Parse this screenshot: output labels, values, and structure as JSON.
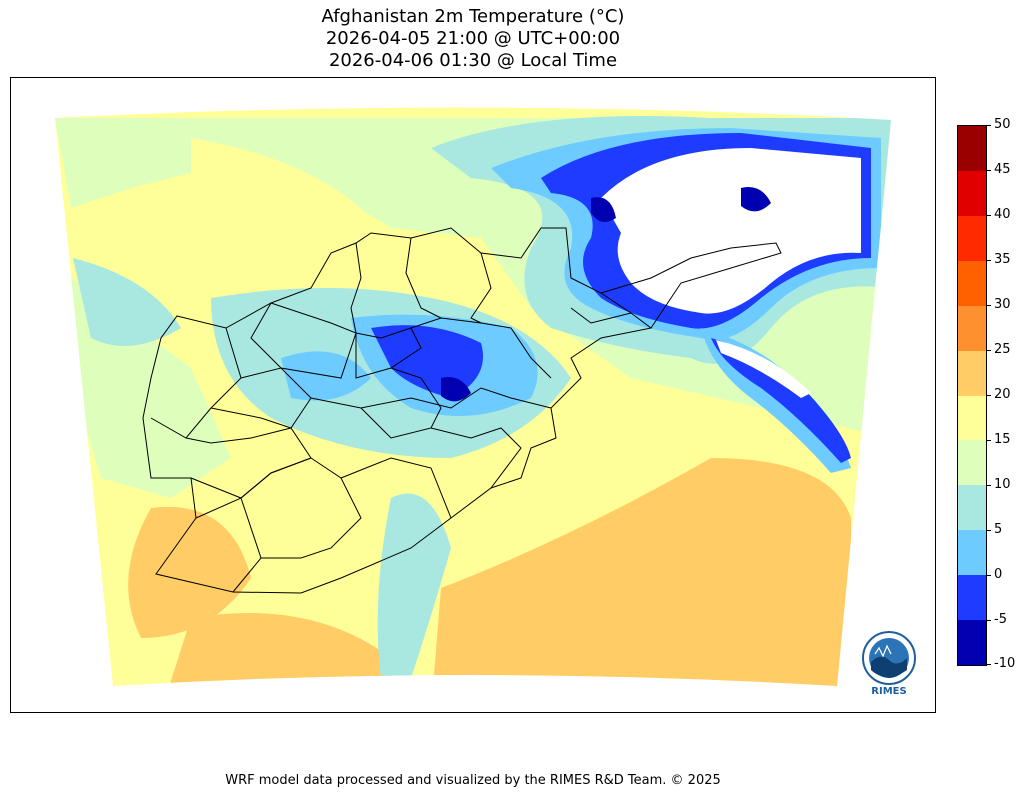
{
  "title": {
    "line1": "Afghanistan 2m Temperature (°C)",
    "line2": "2026-04-05 21:00 @ UTC+00:00",
    "line3": "2026-04-06 01:30 @ Local Time"
  },
  "colorbar": {
    "ticks": [
      "50",
      "45",
      "40",
      "35",
      "30",
      "25",
      "20",
      "15",
      "10",
      "5",
      "0",
      "-5",
      "-10"
    ],
    "colors_top_to_bottom": [
      "#9b0000",
      "#e00000",
      "#ff2a00",
      "#ff6100",
      "#ff9030",
      "#ffcc66",
      "#ffff99",
      "#ddffbb",
      "#a8e8e0",
      "#6ecbff",
      "#1e3cff",
      "#0000b0"
    ]
  },
  "logo": {
    "text": "RIMES",
    "icon": "rimes-logo-icon"
  },
  "footer": "WRF model data processed and visualized by the RIMES R&D Team. © 2025"
}
